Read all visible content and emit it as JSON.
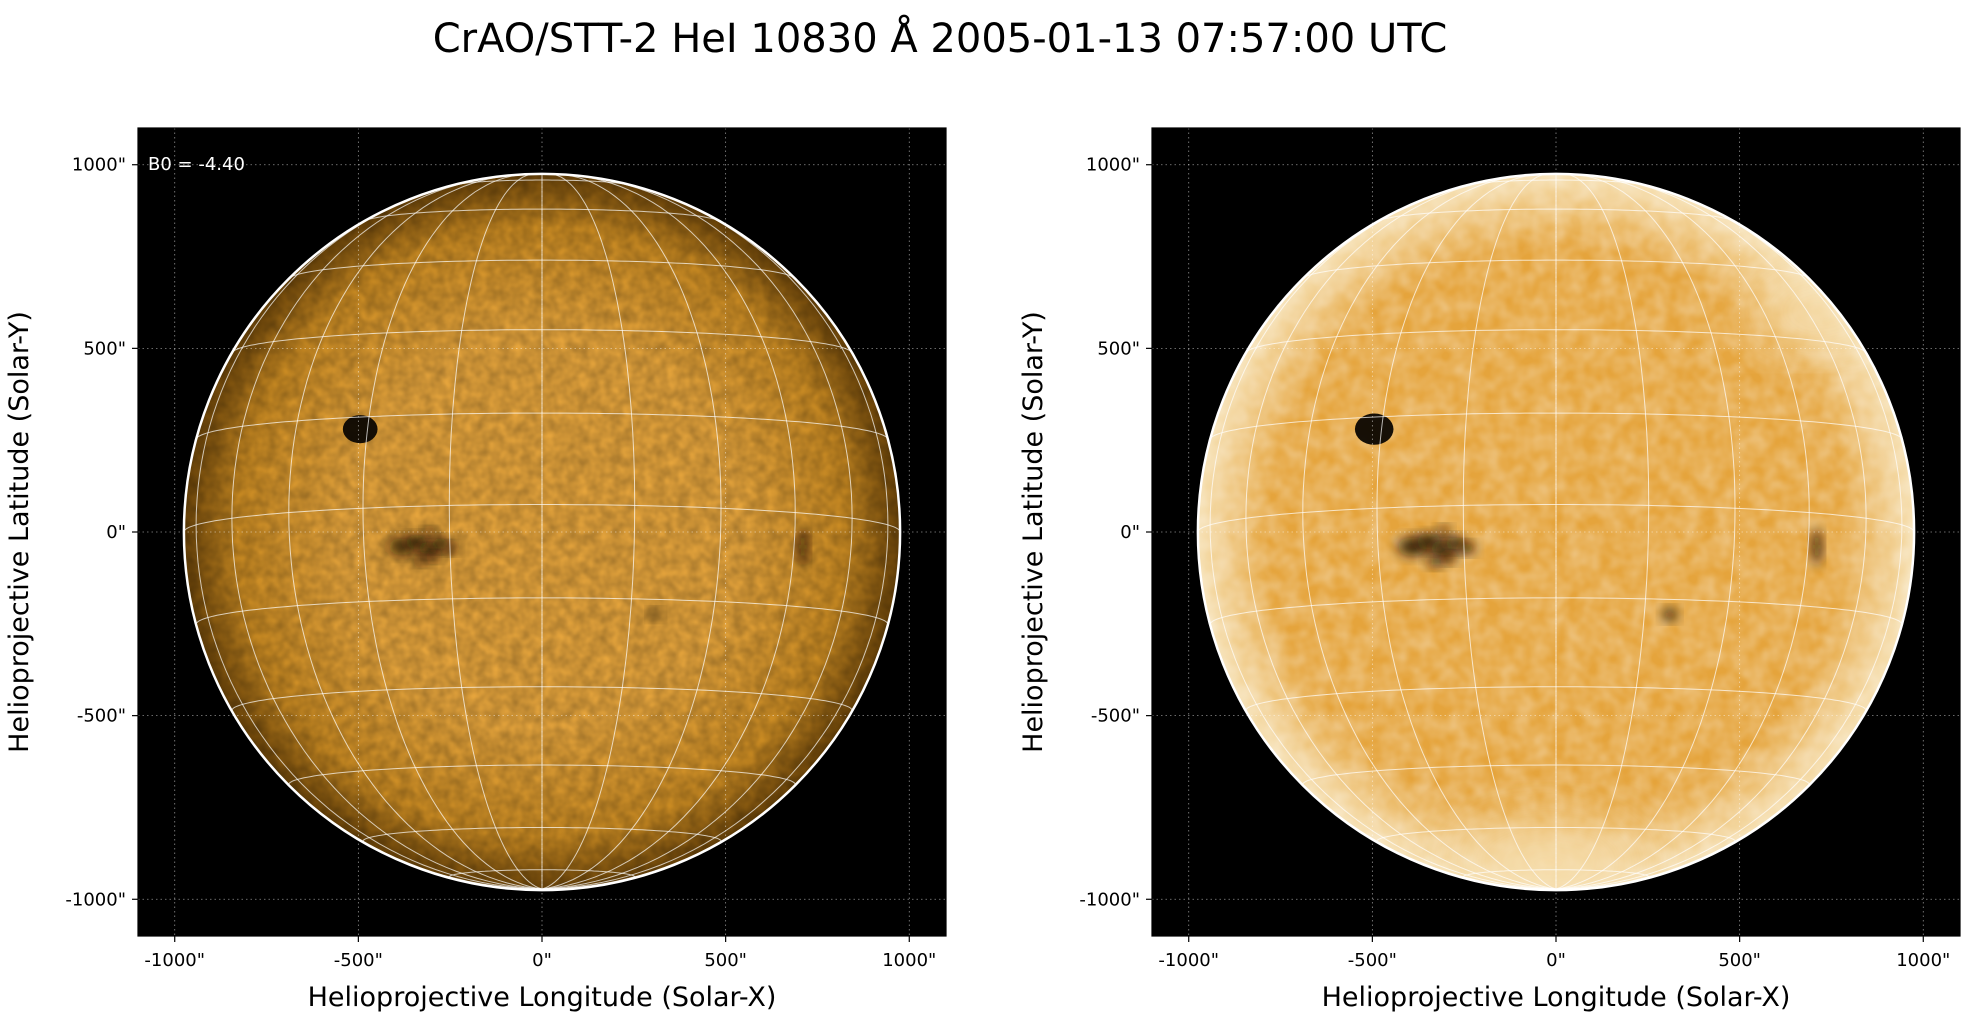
{
  "title": "CrAO/STT-2 HeI 10830 Å 2005-01-13 07:57:00 UTC",
  "colors": {
    "background": "#000000",
    "disk_center": "#e5a43c",
    "disk_mid": "#c98a22",
    "disk_limb": "#6a4308",
    "disk_bright": "#f6dfb0",
    "grid_line": "#ffffff"
  },
  "chart_data": [
    {
      "type": "heatmap",
      "title": "",
      "xlabel": "Helioprojective Longitude (Solar-X)",
      "ylabel": "Helioprojective Latitude (Solar-Y)",
      "xlim": [
        -1100,
        1100
      ],
      "ylim": [
        -1100,
        1100
      ],
      "x_ticks": [
        -1000,
        -500,
        0,
        500,
        1000
      ],
      "y_ticks": [
        -1000,
        -500,
        0,
        500,
        1000
      ],
      "x_tick_labels": [
        "-1000\"",
        "-500\"",
        "0\"",
        "500\"",
        "1000\""
      ],
      "y_tick_labels": [
        "-1000\"",
        "-500\"",
        "0\"",
        "500\"",
        "1000\""
      ],
      "grid": true,
      "solar_radius_arcsec": 975,
      "b0_deg": -4.4,
      "annotation": "B0 = -4.40",
      "annotation_position": "top-left",
      "rendering": "limb-darkened",
      "features": [
        {
          "name": "sunspot",
          "x": -495,
          "y": 280,
          "r": 45
        },
        {
          "name": "active-region",
          "x": -310,
          "y": -40,
          "r": 80
        },
        {
          "name": "filament",
          "x": 710,
          "y": -40,
          "r": 45
        },
        {
          "name": "small-spot",
          "x": 310,
          "y": -225,
          "r": 15
        }
      ]
    },
    {
      "type": "heatmap",
      "title": "",
      "xlabel": "Helioprojective Longitude (Solar-X)",
      "ylabel": "Helioprojective Latitude (Solar-Y)",
      "xlim": [
        -1100,
        1100
      ],
      "ylim": [
        -1100,
        1100
      ],
      "x_ticks": [
        -1000,
        -500,
        0,
        500,
        1000
      ],
      "y_ticks": [
        -1000,
        -500,
        0,
        500,
        1000
      ],
      "x_tick_labels": [
        "-1000\"",
        "-500\"",
        "0\"",
        "500\"",
        "1000\""
      ],
      "y_tick_labels": [
        "-1000\"",
        "-500\"",
        "0\"",
        "500\"",
        "1000\""
      ],
      "grid": true,
      "solar_radius_arcsec": 975,
      "b0_deg": -4.4,
      "annotation": "",
      "rendering": "limb-corrected",
      "features": [
        {
          "name": "sunspot",
          "x": -495,
          "y": 280,
          "r": 50
        },
        {
          "name": "active-region",
          "x": -310,
          "y": -40,
          "r": 90
        },
        {
          "name": "filament",
          "x": 710,
          "y": -40,
          "r": 45
        },
        {
          "name": "small-spot",
          "x": 310,
          "y": -225,
          "r": 18
        },
        {
          "name": "south-polar-bright",
          "x": -20,
          "y": -900,
          "r": 160
        },
        {
          "name": "north-limb-bright",
          "x": 720,
          "y": 600,
          "r": 120
        }
      ]
    }
  ]
}
